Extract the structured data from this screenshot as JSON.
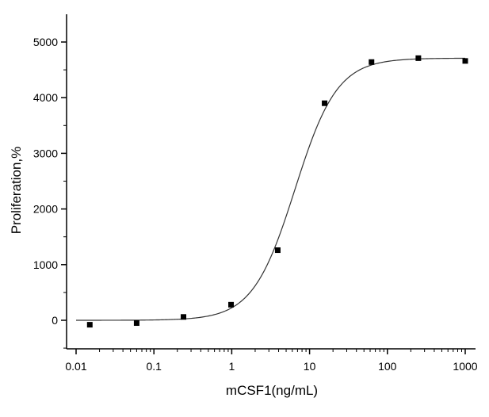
{
  "chart_data": {
    "type": "scatter",
    "title": "",
    "xlabel": "mCSF1(ng/mL)",
    "ylabel": "Proliferation,%",
    "x_scale": "log",
    "xlim": [
      0.01,
      1000
    ],
    "ylim": [
      -500,
      5400
    ],
    "x_ticks": [
      0.01,
      0.1,
      1,
      10,
      100,
      1000
    ],
    "x_tick_labels": [
      "0.01",
      "0.1",
      "1",
      "10",
      "100",
      "1000"
    ],
    "y_ticks": [
      0,
      1000,
      2000,
      3000,
      4000,
      5000
    ],
    "y_tick_labels": [
      "0",
      "1000",
      "2000",
      "3000",
      "4000",
      "5000"
    ],
    "grid": false,
    "legend": "none",
    "marker": "square",
    "color": "#000000",
    "points": [
      {
        "x": 0.015,
        "y": -80
      },
      {
        "x": 0.06,
        "y": -50
      },
      {
        "x": 0.24,
        "y": 60
      },
      {
        "x": 0.98,
        "y": 280
      },
      {
        "x": 3.9,
        "y": 1260
      },
      {
        "x": 15.6,
        "y": 3900
      },
      {
        "x": 62.5,
        "y": 4640
      },
      {
        "x": 250,
        "y": 4710
      },
      {
        "x": 1000,
        "y": 4660
      }
    ],
    "fit_curve": {
      "type": "4PL",
      "bottom": 0,
      "top": 4710,
      "ec50": 6.5,
      "hill": 1.6
    }
  }
}
